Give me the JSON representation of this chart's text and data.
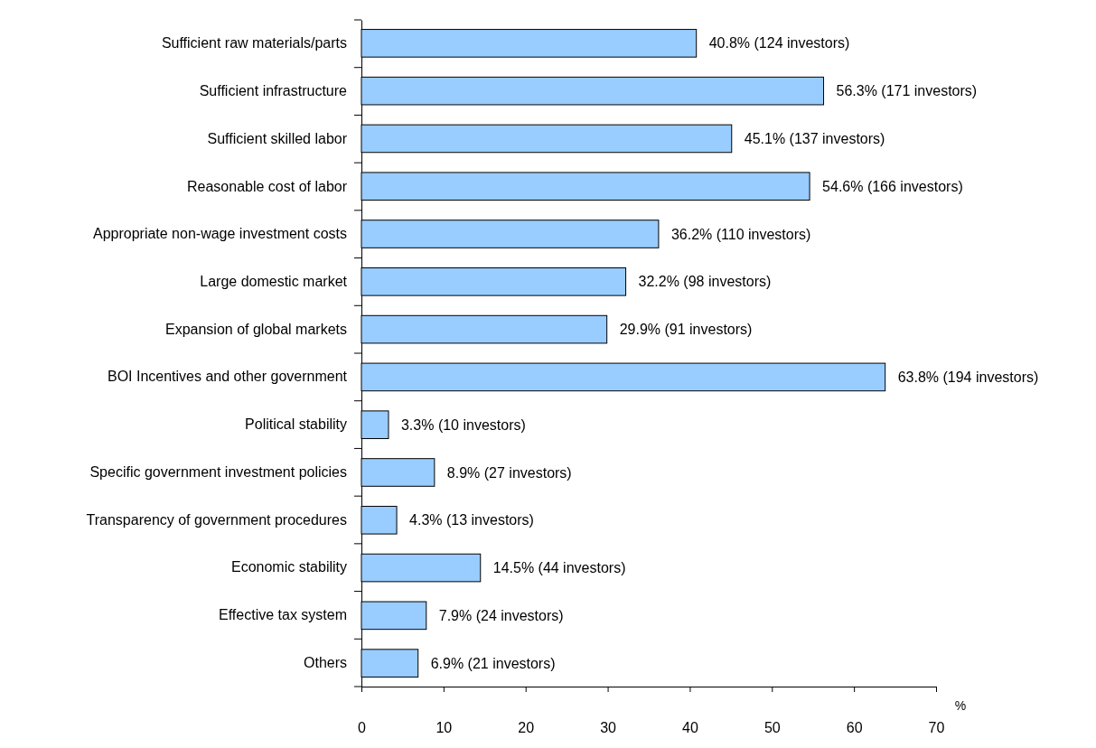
{
  "chart_data": {
    "type": "bar",
    "orientation": "horizontal",
    "xlabel": "%",
    "categories": [
      "Sufficient raw materials/parts",
      "Sufficient infrastructure",
      "Sufficient skilled labor",
      "Reasonable cost of labor",
      "Appropriate non-wage investment costs",
      "Large domestic market",
      "Expansion of global markets",
      "BOI Incentives and other government",
      "Political stability",
      "Specific government investment policies",
      "Transparency of government procedures",
      "Economic stability",
      "Effective tax system",
      "Others"
    ],
    "values": [
      40.8,
      56.3,
      45.1,
      54.6,
      36.2,
      32.2,
      29.9,
      63.8,
      3.3,
      8.9,
      4.3,
      14.5,
      7.9,
      6.9
    ],
    "value_labels": [
      "40.8% (124 investors)",
      "56.3% (171 investors)",
      "45.1% (137 investors)",
      "54.6% (166 investors)",
      "36.2% (110 investors)",
      "32.2% (98 investors)",
      "29.9% (91 investors)",
      "63.8% (194 investors)",
      "3.3% (10 investors)",
      "8.9% (27 investors)",
      "4.3% (13 investors)",
      "14.5% (44 investors)",
      "7.9% (24 investors)",
      "6.9% (21 investors)"
    ],
    "color": "#99ccff",
    "xlim": [
      0,
      70
    ],
    "xticks": [
      0,
      10,
      20,
      30,
      40,
      50,
      60,
      70
    ],
    "grid": false
  }
}
